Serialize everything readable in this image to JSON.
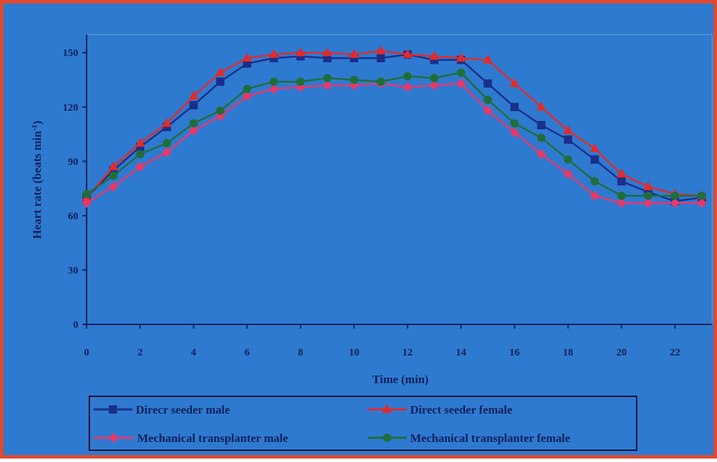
{
  "chart_data": {
    "type": "line",
    "xlabel": "Time (min)",
    "ylabel_main": "Heart rate (beats min",
    "ylabel_sup": "-1",
    "ylabel_close": ")",
    "xlim": [
      0,
      23
    ],
    "ylim": [
      0,
      160
    ],
    "x_ticks": [
      0,
      2,
      4,
      6,
      8,
      10,
      12,
      14,
      16,
      18,
      20,
      22
    ],
    "y_ticks": [
      0,
      30,
      60,
      90,
      120,
      150
    ],
    "x_tick_labels": [
      "0",
      "2",
      "4",
      "6",
      "8",
      "10",
      "12",
      "14",
      "16",
      "18",
      "20",
      "22"
    ],
    "y_tick_labels": [
      "0",
      "30",
      "60",
      "90",
      "120",
      "150"
    ],
    "legend_position": "bottom",
    "x": [
      0,
      1,
      2,
      3,
      4,
      5,
      6,
      7,
      8,
      9,
      10,
      11,
      12,
      13,
      14,
      15,
      16,
      17,
      18,
      19,
      20,
      21,
      22,
      23
    ],
    "series": [
      {
        "name": "Direcr seeder male",
        "color": "#1a2f8c",
        "marker": "square",
        "values": [
          70,
          85,
          98,
          109,
          121,
          134,
          144,
          147,
          148,
          147,
          147,
          147,
          149,
          146,
          146,
          133,
          120,
          110,
          102,
          91,
          79,
          73,
          68,
          70
        ]
      },
      {
        "name": "Direct seeder female",
        "color": "#e32b2b",
        "marker": "triangle",
        "values": [
          70,
          87,
          100,
          111,
          126,
          139,
          147,
          149,
          150,
          150,
          149,
          151,
          149,
          148,
          147,
          146,
          133,
          120,
          107,
          97,
          83,
          76,
          72,
          71
        ]
      },
      {
        "name": "Mechanical transplanter male",
        "color": "#e8386a",
        "marker": "diamond",
        "values": [
          67,
          76,
          87,
          95,
          107,
          115,
          126,
          130,
          131,
          132,
          132,
          133,
          131,
          132,
          133,
          118,
          106,
          94,
          83,
          71,
          67,
          67,
          67,
          67
        ]
      },
      {
        "name": "Mechanical transplanter female",
        "color": "#1f6e3a",
        "marker": "circle",
        "values": [
          72,
          82,
          94,
          100,
          111,
          118,
          130,
          134,
          134,
          136,
          135,
          134,
          137,
          136,
          139,
          124,
          111,
          103,
          91,
          79,
          71,
          71,
          71,
          71
        ]
      }
    ]
  }
}
